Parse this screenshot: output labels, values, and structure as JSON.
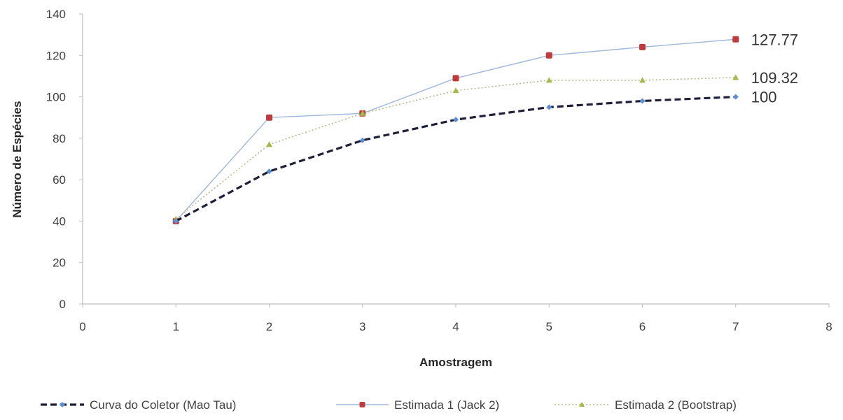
{
  "chart_data": {
    "type": "line",
    "xlabel": "Amostragem",
    "ylabel": "Número de Espécies",
    "xlim": [
      0,
      8
    ],
    "ylim": [
      0,
      140
    ],
    "x_ticks": [
      0,
      1,
      2,
      3,
      4,
      5,
      6,
      7,
      8
    ],
    "y_ticks": [
      0,
      20,
      40,
      60,
      80,
      100,
      120,
      140
    ],
    "grid": false,
    "legend_position": "bottom",
    "series": [
      {
        "name": "Curva do Coletor (Mao Tau)",
        "x": [
          1,
          2,
          3,
          4,
          5,
          6,
          7
        ],
        "values": [
          40,
          64,
          79,
          89,
          95,
          98,
          100
        ],
        "color": "#1f1f3a",
        "marker_color": "#5b8fd6",
        "style": "dashed",
        "end_label": "100"
      },
      {
        "name": "Estimada 1 (Jack 2)",
        "x": [
          1,
          2,
          3,
          4,
          5,
          6,
          7
        ],
        "values": [
          40,
          90,
          92,
          109,
          120,
          124,
          127.77
        ],
        "color": "#9fb7d9",
        "marker_color": "#c0393b",
        "style": "solid",
        "end_label": "127.77"
      },
      {
        "name": "Estimada 2 (Bootstrap)",
        "x": [
          1,
          2,
          3,
          4,
          5,
          6,
          7
        ],
        "values": [
          41,
          77,
          92,
          103,
          108,
          108,
          109.32
        ],
        "color": "#b8b890",
        "marker_color": "#a6b848",
        "style": "dotted",
        "end_label": "109.32"
      }
    ]
  }
}
